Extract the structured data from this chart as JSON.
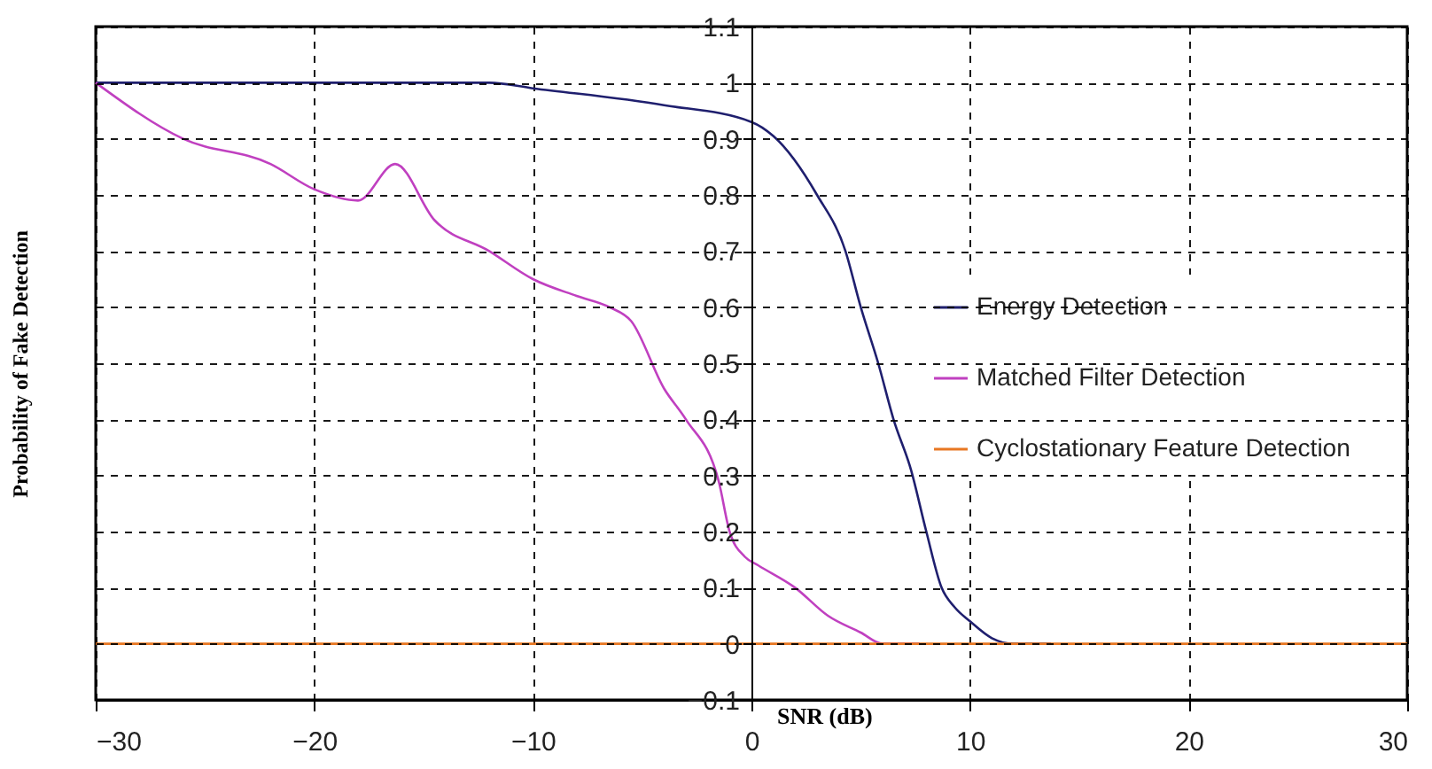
{
  "chart_data": {
    "type": "line",
    "xlabel": "SNR (dB)",
    "ylabel": "Probability of Fake Detection",
    "xlim": [
      -30,
      30
    ],
    "xticks": [
      -30,
      -20,
      -10,
      0,
      10,
      20,
      30
    ],
    "ylim": [
      -0.1,
      1.1
    ],
    "yticks": [
      -0.1,
      0,
      0.1,
      0.2,
      0.3,
      0.4,
      0.5,
      0.6,
      0.7,
      0.8,
      0.9,
      1,
      1.1
    ],
    "grid": true,
    "legend": "right",
    "series": [
      {
        "name": "Energy Detection",
        "color": "#1f1f6e",
        "x": [
          -30,
          -12,
          -10,
          -4,
          0,
          1,
          3,
          4.3,
          5,
          5.8,
          6.5,
          7.3,
          8,
          8.7,
          9.3,
          10,
          11,
          12,
          13.7
        ],
        "values": [
          1,
          1,
          0.99,
          0.96,
          0.93,
          0.905,
          0.8,
          0.7,
          0.6,
          0.5,
          0.4,
          0.31,
          0.2,
          0.1,
          0.065,
          0.04,
          0.01,
          0,
          0
        ]
      },
      {
        "name": "Matched Filter Detection",
        "color": "#c040c0",
        "x": [
          -30,
          -26,
          -22,
          -20,
          -18,
          -16.3,
          -14.5,
          -12,
          -10,
          -8,
          -6.5,
          -5.5,
          -4,
          -3,
          -1.5,
          -1,
          -0.3,
          0.3,
          2,
          3.5,
          5,
          6,
          7.7
        ],
        "values": [
          1,
          0.9,
          0.855,
          0.81,
          0.79,
          0.855,
          0.755,
          0.7,
          0.65,
          0.62,
          0.6,
          0.575,
          0.455,
          0.4,
          0.29,
          0.2,
          0.155,
          0.14,
          0.1,
          0.05,
          0.02,
          0,
          0
        ]
      },
      {
        "name": "Cyclostationary Feature Detection",
        "color": "#e87722",
        "x": [
          -30,
          30
        ],
        "values": [
          0,
          0
        ]
      }
    ]
  }
}
